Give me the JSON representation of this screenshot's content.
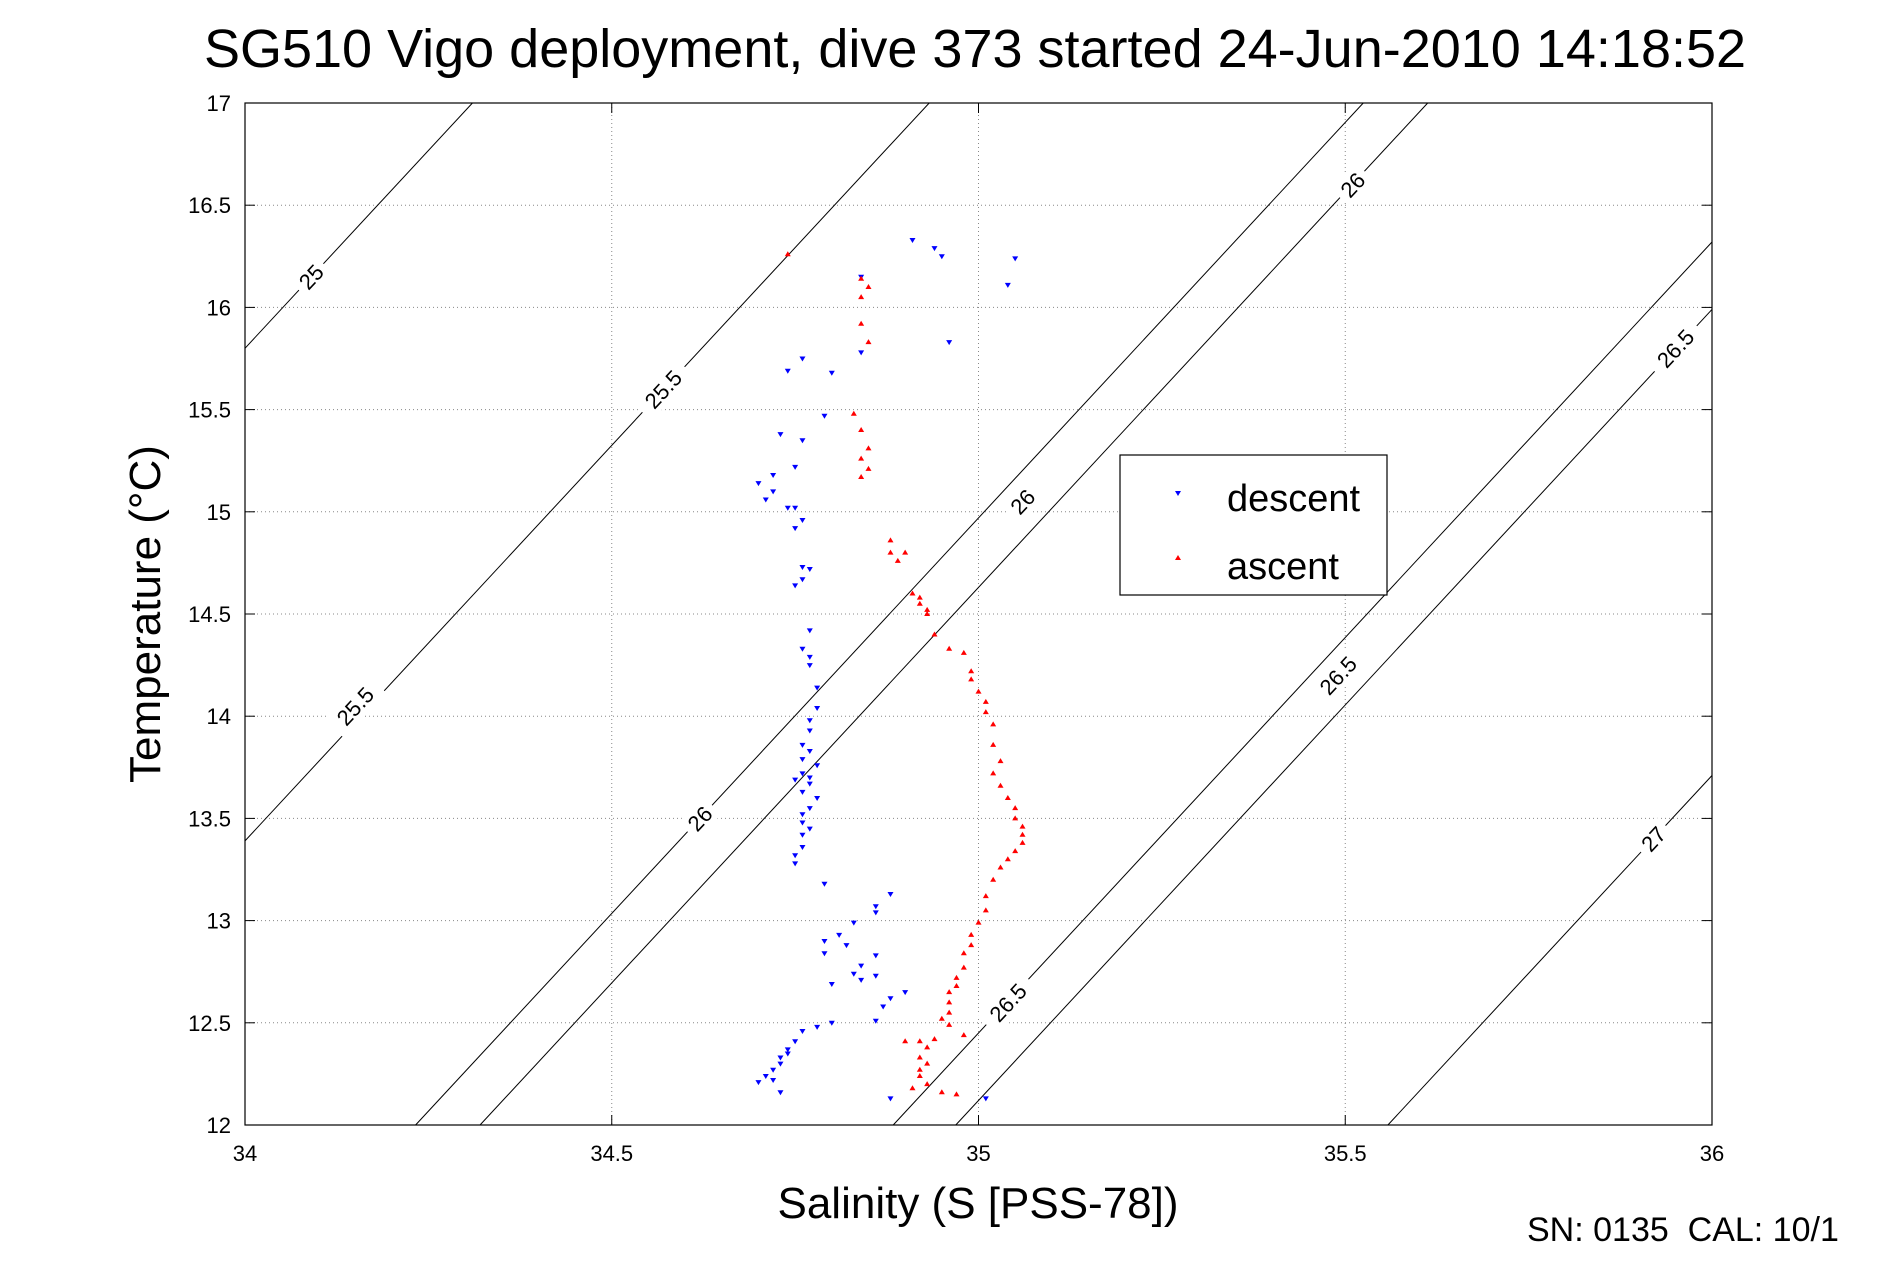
{
  "chart_data": {
    "type": "scatter",
    "title": "SG510 Vigo deployment, dive 373 started 24-Jun-2010 14:18:52",
    "xlabel": "Salinity (S [PSS-78])",
    "ylabel": "Temperature (°C)",
    "xlim": [
      34,
      36
    ],
    "ylim": [
      12,
      17
    ],
    "xticks": [
      "34",
      "34.5",
      "35",
      "35.5",
      "36"
    ],
    "yticks": [
      "12",
      "12.5",
      "13",
      "13.5",
      "14",
      "14.5",
      "15",
      "15.5",
      "16",
      "16.5",
      "17"
    ],
    "grid": true,
    "legend_placement": "center-right",
    "contour_labels": [
      {
        "text": "25",
        "s": 34.09,
        "t": 16.15
      },
      {
        "text": "25.5",
        "s": 34.57,
        "t": 15.6
      },
      {
        "text": "25.5",
        "s": 34.15,
        "t": 14.05
      },
      {
        "text": "26",
        "s": 35.51,
        "t": 16.6
      },
      {
        "text": "26",
        "s": 35.06,
        "t": 15.05
      },
      {
        "text": "26",
        "s": 34.62,
        "t": 13.5
      },
      {
        "text": "26.5",
        "s": 35.95,
        "t": 15.8
      },
      {
        "text": "26.5",
        "s": 35.49,
        "t": 14.2
      },
      {
        "text": "26.5",
        "s": 35.04,
        "t": 12.6
      },
      {
        "text": "27",
        "s": 35.92,
        "t": 13.4
      }
    ],
    "series": [
      {
        "name": "descent",
        "color": "#0000ff",
        "marker": "triangle-down",
        "points": [
          [
            34.91,
            16.33
          ],
          [
            34.94,
            16.29
          ],
          [
            34.95,
            16.25
          ],
          [
            35.05,
            16.24
          ],
          [
            35.04,
            16.11
          ],
          [
            34.84,
            16.15
          ],
          [
            34.96,
            15.83
          ],
          [
            34.84,
            15.78
          ],
          [
            34.76,
            15.75
          ],
          [
            34.74,
            15.69
          ],
          [
            34.8,
            15.68
          ],
          [
            34.79,
            15.47
          ],
          [
            34.76,
            15.35
          ],
          [
            34.73,
            15.38
          ],
          [
            34.75,
            15.22
          ],
          [
            34.72,
            15.18
          ],
          [
            34.7,
            15.14
          ],
          [
            34.72,
            15.1
          ],
          [
            34.71,
            15.06
          ],
          [
            34.74,
            15.02
          ],
          [
            34.75,
            15.02
          ],
          [
            34.76,
            14.96
          ],
          [
            34.75,
            14.92
          ],
          [
            34.76,
            14.73
          ],
          [
            34.77,
            14.72
          ],
          [
            34.76,
            14.67
          ],
          [
            34.75,
            14.64
          ],
          [
            34.77,
            14.42
          ],
          [
            34.76,
            14.33
          ],
          [
            34.77,
            14.29
          ],
          [
            34.77,
            14.25
          ],
          [
            34.78,
            14.14
          ],
          [
            34.78,
            14.04
          ],
          [
            34.77,
            13.98
          ],
          [
            34.77,
            13.93
          ],
          [
            34.76,
            13.86
          ],
          [
            34.77,
            13.83
          ],
          [
            34.76,
            13.79
          ],
          [
            34.78,
            13.76
          ],
          [
            34.76,
            13.72
          ],
          [
            34.77,
            13.7
          ],
          [
            34.75,
            13.69
          ],
          [
            34.77,
            13.67
          ],
          [
            34.76,
            13.63
          ],
          [
            34.78,
            13.6
          ],
          [
            34.77,
            13.55
          ],
          [
            34.76,
            13.52
          ],
          [
            34.76,
            13.48
          ],
          [
            34.77,
            13.45
          ],
          [
            34.76,
            13.42
          ],
          [
            34.76,
            13.36
          ],
          [
            34.75,
            13.32
          ],
          [
            34.75,
            13.28
          ],
          [
            34.79,
            13.18
          ],
          [
            34.88,
            13.13
          ],
          [
            34.86,
            13.07
          ],
          [
            34.86,
            13.04
          ],
          [
            34.83,
            12.99
          ],
          [
            34.81,
            12.93
          ],
          [
            34.79,
            12.9
          ],
          [
            34.82,
            12.88
          ],
          [
            34.79,
            12.84
          ],
          [
            34.86,
            12.83
          ],
          [
            34.84,
            12.78
          ],
          [
            34.83,
            12.74
          ],
          [
            34.86,
            12.73
          ],
          [
            34.84,
            12.71
          ],
          [
            34.8,
            12.69
          ],
          [
            34.9,
            12.65
          ],
          [
            34.88,
            12.62
          ],
          [
            34.87,
            12.58
          ],
          [
            34.86,
            12.51
          ],
          [
            34.8,
            12.5
          ],
          [
            34.78,
            12.48
          ],
          [
            34.76,
            12.46
          ],
          [
            34.75,
            12.41
          ],
          [
            34.74,
            12.37
          ],
          [
            34.74,
            12.35
          ],
          [
            34.73,
            12.33
          ],
          [
            34.73,
            12.3
          ],
          [
            34.72,
            12.27
          ],
          [
            34.71,
            12.24
          ],
          [
            34.72,
            12.22
          ],
          [
            34.7,
            12.21
          ],
          [
            34.73,
            12.16
          ],
          [
            34.88,
            12.13
          ],
          [
            35.01,
            12.13
          ]
        ]
      },
      {
        "name": "ascent",
        "color": "#ff0000",
        "marker": "triangle-up",
        "points": [
          [
            34.74,
            16.26
          ],
          [
            34.84,
            16.14
          ],
          [
            34.85,
            16.1
          ],
          [
            34.84,
            16.05
          ],
          [
            34.84,
            15.92
          ],
          [
            34.85,
            15.83
          ],
          [
            34.83,
            15.48
          ],
          [
            34.84,
            15.4
          ],
          [
            34.85,
            15.31
          ],
          [
            34.84,
            15.26
          ],
          [
            34.85,
            15.21
          ],
          [
            34.84,
            15.17
          ],
          [
            34.88,
            14.86
          ],
          [
            34.88,
            14.8
          ],
          [
            34.89,
            14.76
          ],
          [
            34.9,
            14.8
          ],
          [
            34.91,
            14.6
          ],
          [
            34.92,
            14.58
          ],
          [
            34.92,
            14.55
          ],
          [
            34.93,
            14.52
          ],
          [
            34.93,
            14.5
          ],
          [
            34.94,
            14.4
          ],
          [
            34.96,
            14.33
          ],
          [
            34.98,
            14.31
          ],
          [
            34.99,
            14.22
          ],
          [
            34.99,
            14.18
          ],
          [
            35.0,
            14.12
          ],
          [
            35.01,
            14.07
          ],
          [
            35.01,
            14.02
          ],
          [
            35.02,
            13.96
          ],
          [
            35.02,
            13.86
          ],
          [
            35.03,
            13.78
          ],
          [
            35.02,
            13.72
          ],
          [
            35.03,
            13.66
          ],
          [
            35.04,
            13.6
          ],
          [
            35.05,
            13.55
          ],
          [
            35.05,
            13.5
          ],
          [
            35.06,
            13.46
          ],
          [
            35.06,
            13.42
          ],
          [
            35.06,
            13.38
          ],
          [
            35.05,
            13.34
          ],
          [
            35.04,
            13.3
          ],
          [
            35.03,
            13.26
          ],
          [
            35.02,
            13.2
          ],
          [
            35.01,
            13.12
          ],
          [
            35.01,
            13.05
          ],
          [
            35.0,
            12.99
          ],
          [
            34.99,
            12.93
          ],
          [
            34.99,
            12.88
          ],
          [
            34.98,
            12.84
          ],
          [
            34.98,
            12.77
          ],
          [
            34.97,
            12.72
          ],
          [
            34.97,
            12.68
          ],
          [
            34.96,
            12.65
          ],
          [
            34.96,
            12.6
          ],
          [
            34.96,
            12.55
          ],
          [
            34.95,
            12.52
          ],
          [
            34.96,
            12.49
          ],
          [
            34.98,
            12.44
          ],
          [
            34.94,
            12.42
          ],
          [
            34.92,
            12.41
          ],
          [
            34.9,
            12.41
          ],
          [
            34.93,
            12.38
          ],
          [
            34.92,
            12.33
          ],
          [
            34.93,
            12.3
          ],
          [
            34.92,
            12.27
          ],
          [
            34.92,
            12.24
          ],
          [
            34.93,
            12.2
          ],
          [
            34.91,
            12.18
          ],
          [
            34.95,
            12.16
          ],
          [
            34.97,
            12.15
          ]
        ]
      }
    ]
  },
  "footer": {
    "serial_text": "SN: 0135  CAL: 10/1"
  }
}
